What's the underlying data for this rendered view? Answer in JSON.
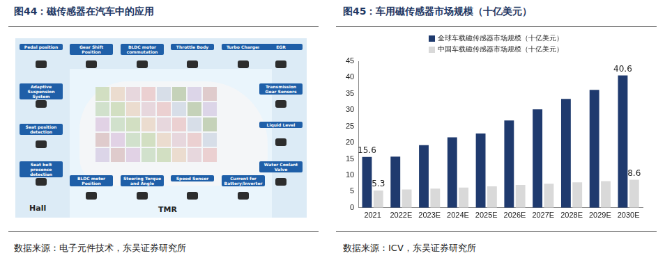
{
  "left_figure": {
    "title": "图44：磁传感器在汽车中的应用",
    "labels": [
      "Pedal position",
      "Gear Shift Position",
      "BLDC motor commutation",
      "Throttle Body",
      "Turbo Charger",
      "EGR",
      "Adaptive Suspension System",
      "Seat position detection",
      "Seat belt presence detection",
      "Transmission Gear Sensors",
      "Liquid Level",
      "Water Coolant Valve",
      "BLDC motor Position",
      "Steering Torque and Angle",
      "Speed Sensor",
      "Current for Battery/Inverter"
    ],
    "groups": [
      "Hall",
      "TMR"
    ],
    "source": "数据来源：电子元件技术，东吴证券研究所"
  },
  "chart_data": {
    "type": "bar",
    "title": "图45：车用磁传感器市场规模（十亿美元）",
    "categories": [
      "2021",
      "2022E",
      "2023E",
      "2024E",
      "2025E",
      "2026E",
      "2027E",
      "2028E",
      "2029E",
      "2030E"
    ],
    "series": [
      {
        "name": "全球车载磁传感器市场规模（十亿美元）",
        "color": "#1f3a6e",
        "values": [
          15.6,
          15.7,
          19.2,
          21.6,
          22.8,
          26.8,
          30.2,
          33.4,
          36.2,
          40.6
        ],
        "value_labels": [
          "15.6",
          null,
          null,
          null,
          null,
          null,
          null,
          null,
          null,
          "40.6"
        ]
      },
      {
        "name": "中国车载磁传感器市场规模（十亿美元）",
        "color": "#d9d9d9",
        "values": [
          5.3,
          5.6,
          5.9,
          6.2,
          6.6,
          7.0,
          7.4,
          7.8,
          8.2,
          8.6
        ],
        "value_labels": [
          "5.3",
          null,
          null,
          null,
          null,
          null,
          null,
          null,
          null,
          "8.6"
        ]
      }
    ],
    "ylim": [
      0,
      45
    ],
    "yticks": [
      0,
      5,
      10,
      15,
      20,
      25,
      30,
      35,
      40,
      45
    ],
    "grid": false,
    "legend": "top",
    "data_labels": true,
    "source": "数据来源：ICV，东吴证券研究所"
  }
}
